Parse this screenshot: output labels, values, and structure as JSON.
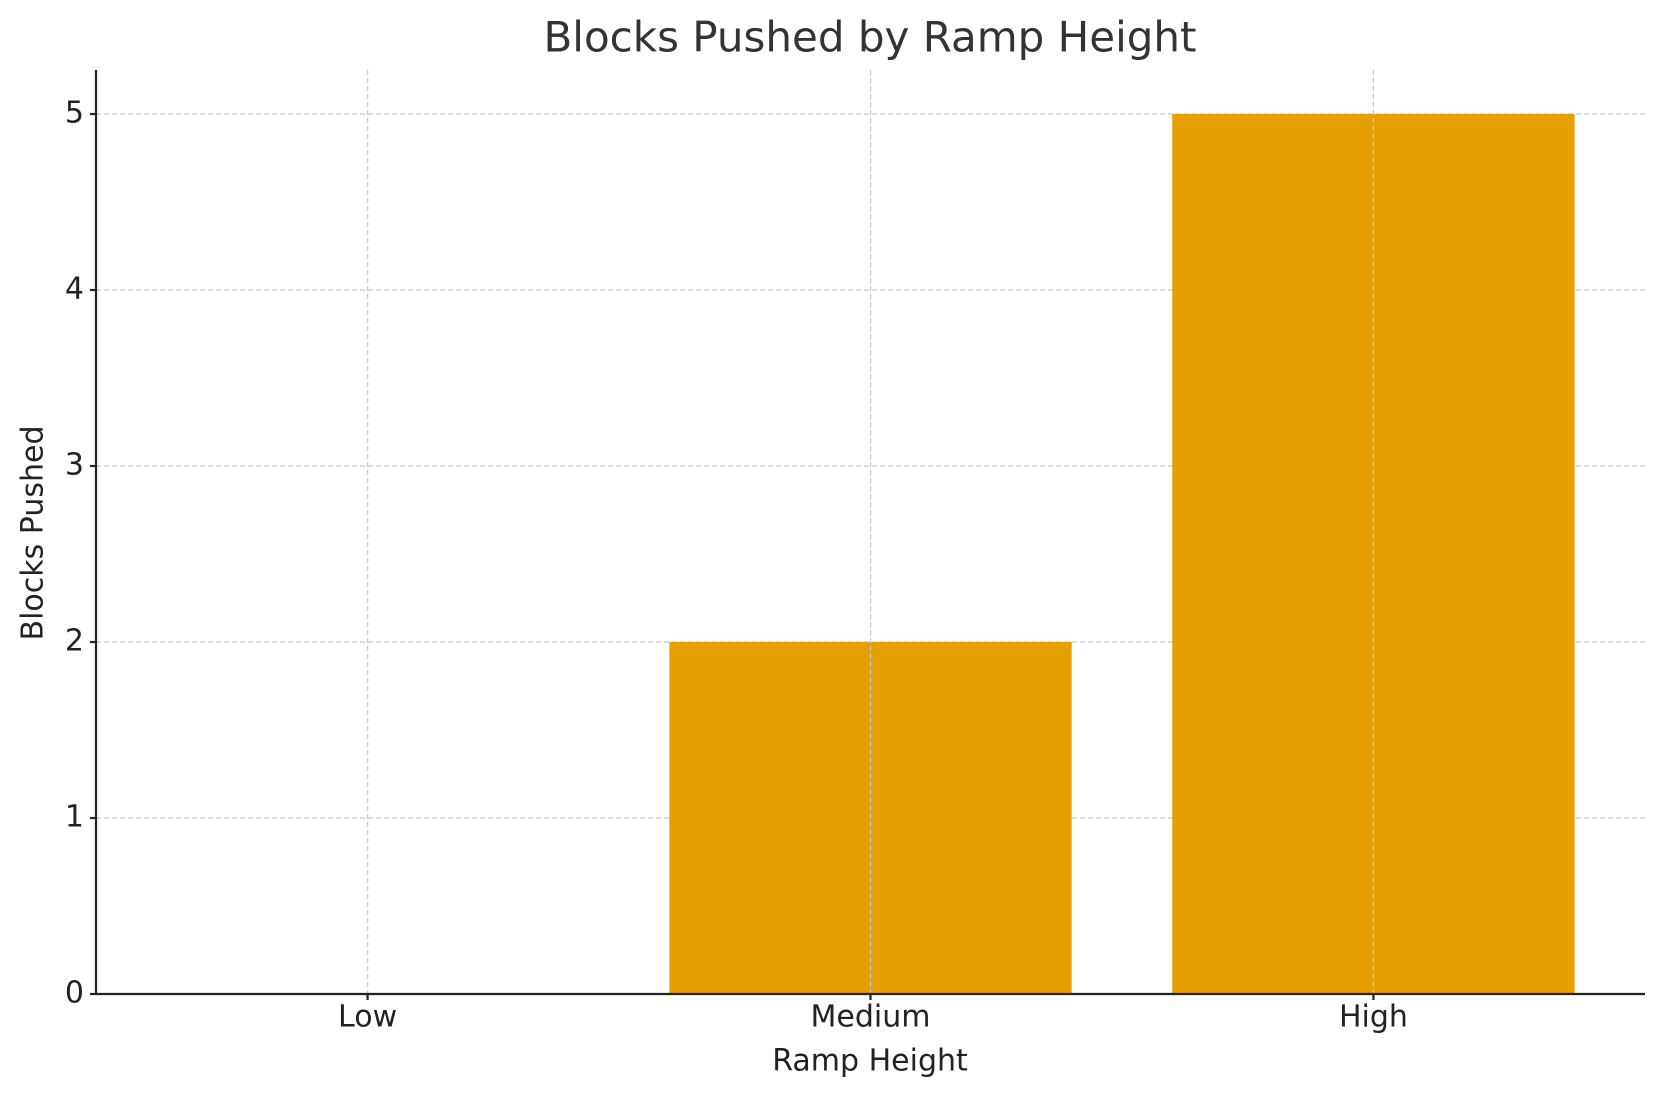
{
  "chart_data": {
    "type": "bar",
    "title": "Blocks Pushed by Ramp Height",
    "x_label": "Ramp Height",
    "y_label": "Blocks Pushed",
    "categories": [
      "Low",
      "Medium",
      "High"
    ],
    "values": [
      0,
      2,
      5
    ],
    "color": "#e5a000",
    "ylim": [
      0,
      5.25
    ],
    "yticks": [
      0,
      1,
      2,
      3,
      4,
      5
    ],
    "grid": true
  }
}
